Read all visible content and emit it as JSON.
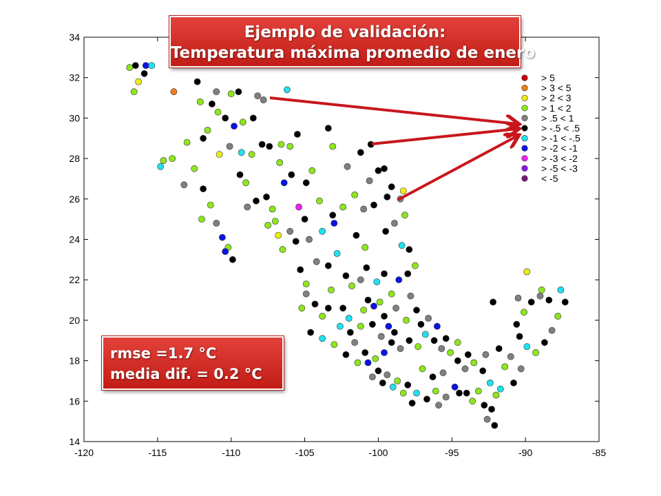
{
  "title": {
    "line1": "Ejemplo de validación:",
    "line2": "Temperatura máxima promedio de enero"
  },
  "stats": {
    "rmse": "rmse =1.7 °C",
    "media": "media dif. =  0.2 °C"
  },
  "colors": {
    "frame": "#000000",
    "arrow": "#c8161d",
    "box": "#d42b25"
  },
  "chart_data": {
    "type": "scatter",
    "xlim": [
      -120,
      -85
    ],
    "ylim": [
      14,
      34
    ],
    "xticks": [
      "-120",
      "-115",
      "-110",
      "-105",
      "-100",
      "-95",
      "-90",
      "-85"
    ],
    "yticks": [
      "14",
      "16",
      "18",
      "20",
      "22",
      "24",
      "26",
      "28",
      "30",
      "32",
      "34"
    ],
    "grid": false,
    "legend_position": "top-right",
    "legend": [
      {
        "label": "> 5",
        "color": "#cc0000"
      },
      {
        "label": "> 3 < 5",
        "color": "#f07d1a"
      },
      {
        "label": "> 2 < 3",
        "color": "#ecec1a"
      },
      {
        "label": "> 1 < 2",
        "color": "#8ee61e"
      },
      {
        "label": "> .5 < 1",
        "color": "#808080"
      },
      {
        "label": "> -.5 < .5",
        "color": "#000000"
      },
      {
        "label": "> -1 < -.5",
        "color": "#22e0f0"
      },
      {
        "label": "> -2 < -1",
        "color": "#0a14e6"
      },
      {
        "label": "> -3 < -2",
        "color": "#f020f0"
      },
      {
        "label": "> -5 < -3",
        "color": "#8a1ae0"
      },
      {
        "label": "< -5",
        "color": "#7a1a7a"
      }
    ],
    "points": [
      [
        -116.9,
        32.5,
        3
      ],
      [
        -116.5,
        32.6,
        5
      ],
      [
        -115.8,
        32.6,
        7
      ],
      [
        -115.4,
        32.6,
        6
      ],
      [
        -116.3,
        31.8,
        2
      ],
      [
        -116.6,
        31.3,
        3
      ],
      [
        -115.9,
        32.2,
        5
      ],
      [
        -113.9,
        31.3,
        1
      ],
      [
        -112.3,
        31.8,
        5
      ],
      [
        -112.1,
        30.8,
        3
      ],
      [
        -111.3,
        30.7,
        5
      ],
      [
        -111.0,
        31.3,
        4
      ],
      [
        -110.0,
        31.2,
        3
      ],
      [
        -109.5,
        31.3,
        5
      ],
      [
        -110.9,
        30.3,
        3
      ],
      [
        -110.4,
        30.0,
        5
      ],
      [
        -109.8,
        29.6,
        7
      ],
      [
        -109.2,
        29.8,
        3
      ],
      [
        -108.5,
        30.0,
        5
      ],
      [
        -107.8,
        30.9,
        4
      ],
      [
        -108.2,
        31.1,
        4
      ],
      [
        -107.9,
        28.7,
        5
      ],
      [
        -108.6,
        28.2,
        3
      ],
      [
        -107.4,
        28.6,
        5
      ],
      [
        -106.2,
        31.4,
        6
      ],
      [
        -106.6,
        28.7,
        3
      ],
      [
        -106.0,
        28.6,
        3
      ],
      [
        -105.5,
        29.2,
        5
      ],
      [
        -105.9,
        27.2,
        5
      ],
      [
        -106.4,
        26.8,
        7
      ],
      [
        -106.7,
        27.8,
        3
      ],
      [
        -107.6,
        26.1,
        5
      ],
      [
        -107.2,
        25.5,
        3
      ],
      [
        -105.4,
        25.6,
        8
      ],
      [
        -104.9,
        26.8,
        5
      ],
      [
        -104.5,
        27.4,
        3
      ],
      [
        -103.4,
        29.5,
        5
      ],
      [
        -103.1,
        28.6,
        3
      ],
      [
        -102.1,
        27.6,
        4
      ],
      [
        -101.2,
        28.3,
        5
      ],
      [
        -100.5,
        28.7,
        5
      ],
      [
        -100.0,
        27.4,
        5
      ],
      [
        -100.6,
        26.9,
        4
      ],
      [
        -99.6,
        27.5,
        5
      ],
      [
        -101.6,
        26.2,
        3
      ],
      [
        -100.3,
        25.7,
        5
      ],
      [
        -99.4,
        26.1,
        5
      ],
      [
        -98.5,
        26.0,
        4
      ],
      [
        -98.2,
        25.2,
        3
      ],
      [
        -101.0,
        25.5,
        4
      ],
      [
        -102.4,
        25.6,
        3
      ],
      [
        -103.1,
        25.2,
        5
      ],
      [
        -103.8,
        24.4,
        6
      ],
      [
        -104.7,
        24.0,
        4
      ],
      [
        -105.6,
        23.9,
        5
      ],
      [
        -106.5,
        23.5,
        3
      ],
      [
        -105.3,
        22.5,
        5
      ],
      [
        -104.9,
        21.8,
        3
      ],
      [
        -104.2,
        22.9,
        4
      ],
      [
        -103.4,
        22.7,
        5
      ],
      [
        -102.8,
        23.3,
        6
      ],
      [
        -102.2,
        22.2,
        5
      ],
      [
        -101.8,
        21.7,
        3
      ],
      [
        -101.2,
        22.0,
        4
      ],
      [
        -100.8,
        22.6,
        5
      ],
      [
        -100.1,
        21.9,
        6
      ],
      [
        -99.6,
        22.3,
        5
      ],
      [
        -99.1,
        21.3,
        3
      ],
      [
        -98.6,
        22.0,
        7
      ],
      [
        -98.0,
        22.3,
        5
      ],
      [
        -97.8,
        21.2,
        4
      ],
      [
        -97.4,
        20.5,
        5
      ],
      [
        -98.1,
        20.0,
        3
      ],
      [
        -98.9,
        19.4,
        5
      ],
      [
        -99.3,
        19.7,
        7
      ],
      [
        -99.8,
        19.2,
        4
      ],
      [
        -100.4,
        19.8,
        5
      ],
      [
        -101.2,
        19.7,
        3
      ],
      [
        -101.9,
        19.4,
        5
      ],
      [
        -102.6,
        19.7,
        6
      ],
      [
        -103.4,
        20.6,
        5
      ],
      [
        -103.8,
        20.2,
        3
      ],
      [
        -104.3,
        20.8,
        5
      ],
      [
        -104.9,
        21.3,
        4
      ],
      [
        -105.2,
        20.6,
        3
      ],
      [
        -104.6,
        19.4,
        5
      ],
      [
        -103.8,
        19.1,
        6
      ],
      [
        -103.0,
        18.8,
        3
      ],
      [
        -102.2,
        18.3,
        5
      ],
      [
        -101.6,
        18.9,
        4
      ],
      [
        -100.9,
        18.4,
        5
      ],
      [
        -100.2,
        18.1,
        3
      ],
      [
        -99.6,
        18.4,
        7
      ],
      [
        -99.1,
        18.9,
        5
      ],
      [
        -98.5,
        18.6,
        4
      ],
      [
        -97.9,
        19.0,
        5
      ],
      [
        -97.3,
        18.7,
        3
      ],
      [
        -96.8,
        19.3,
        6
      ],
      [
        -96.2,
        19.0,
        5
      ],
      [
        -95.7,
        18.6,
        4
      ],
      [
        -95.1,
        18.4,
        3
      ],
      [
        -94.6,
        18.0,
        5
      ],
      [
        -94.1,
        17.6,
        4
      ],
      [
        -93.5,
        17.9,
        3
      ],
      [
        -92.9,
        17.5,
        5
      ],
      [
        -92.4,
        16.9,
        6
      ],
      [
        -92.0,
        16.3,
        3
      ],
      [
        -92.3,
        15.6,
        5
      ],
      [
        -92.6,
        15.1,
        4
      ],
      [
        -92.1,
        14.8,
        5
      ],
      [
        -93.2,
        16.5,
        3
      ],
      [
        -94.0,
        16.4,
        5
      ],
      [
        -94.8,
        16.7,
        7
      ],
      [
        -95.4,
        16.2,
        4
      ],
      [
        -96.1,
        16.5,
        3
      ],
      [
        -96.7,
        16.1,
        5
      ],
      [
        -97.4,
        16.4,
        6
      ],
      [
        -98.0,
        16.8,
        5
      ],
      [
        -98.7,
        17.0,
        3
      ],
      [
        -99.4,
        17.3,
        4
      ],
      [
        -100.0,
        17.5,
        5
      ],
      [
        -100.7,
        17.9,
        7
      ],
      [
        -101.4,
        17.9,
        3
      ],
      [
        -96.3,
        17.2,
        5
      ],
      [
        -95.6,
        17.4,
        4
      ],
      [
        -97.0,
        17.6,
        3
      ],
      [
        -90.6,
        19.8,
        5
      ],
      [
        -90.1,
        20.4,
        3
      ],
      [
        -89.6,
        20.9,
        5
      ],
      [
        -89.0,
        21.2,
        4
      ],
      [
        -88.4,
        21.0,
        5
      ],
      [
        -87.3,
        20.9,
        5
      ],
      [
        -87.8,
        20.2,
        3
      ],
      [
        -88.2,
        19.5,
        4
      ],
      [
        -88.7,
        18.9,
        5
      ],
      [
        -89.3,
        18.4,
        3
      ],
      [
        -89.9,
        18.7,
        6
      ],
      [
        -90.4,
        19.2,
        5
      ],
      [
        -91.0,
        18.2,
        4
      ],
      [
        -91.8,
        18.6,
        5
      ],
      [
        -92.2,
        20.9,
        5
      ],
      [
        -89.9,
        22.4,
        2
      ],
      [
        -87.6,
        21.5,
        6
      ],
      [
        -88.9,
        21.5,
        3
      ],
      [
        -90.5,
        21.1,
        4
      ],
      [
        -113.0,
        28.8,
        3
      ],
      [
        -112.5,
        27.5,
        3
      ],
      [
        -111.9,
        26.5,
        5
      ],
      [
        -111.4,
        25.7,
        3
      ],
      [
        -111.0,
        24.8,
        4
      ],
      [
        -110.6,
        24.1,
        7
      ],
      [
        -110.2,
        23.6,
        3
      ],
      [
        -109.9,
        23.0,
        5
      ],
      [
        -110.4,
        23.4,
        7
      ],
      [
        -112.0,
        25.0,
        3
      ],
      [
        -113.2,
        26.7,
        4
      ],
      [
        -114.0,
        28.0,
        3
      ],
      [
        -114.6,
        27.9,
        3
      ],
      [
        -114.8,
        27.6,
        6
      ],
      [
        -109.0,
        26.8,
        3
      ],
      [
        -108.3,
        25.9,
        5
      ],
      [
        -107.0,
        24.9,
        3
      ],
      [
        -106.0,
        24.4,
        4
      ],
      [
        -103.0,
        24.8,
        7
      ],
      [
        -101.5,
        24.2,
        5
      ],
      [
        -100.9,
        23.6,
        3
      ],
      [
        -99.5,
        24.4,
        5
      ],
      [
        -98.9,
        24.8,
        4
      ],
      [
        -98.4,
        23.7,
        6
      ],
      [
        -97.9,
        23.5,
        5
      ],
      [
        -97.5,
        22.7,
        3
      ],
      [
        -98.3,
        26.4,
        2
      ],
      [
        -99.1,
        26.6,
        5
      ],
      [
        -104.0,
        25.9,
        3
      ],
      [
        -105.0,
        25.0,
        5
      ],
      [
        -106.8,
        24.2,
        2
      ],
      [
        -107.5,
        24.7,
        3
      ],
      [
        -108.9,
        25.6,
        4
      ],
      [
        -109.4,
        27.2,
        5
      ],
      [
        -110.8,
        28.2,
        2
      ],
      [
        -111.6,
        29.4,
        3
      ],
      [
        -111.9,
        29.0,
        5
      ],
      [
        -110.1,
        28.6,
        4
      ],
      [
        -109.3,
        28.3,
        6
      ],
      [
        -102.4,
        20.6,
        5
      ],
      [
        -101.0,
        20.5,
        3
      ],
      [
        -100.3,
        20.7,
        7
      ],
      [
        -99.6,
        20.2,
        5
      ],
      [
        -98.8,
        20.6,
        4
      ],
      [
        -103.2,
        21.5,
        3
      ],
      [
        -102.0,
        20.1,
        6
      ],
      [
        -100.7,
        21.0,
        5
      ],
      [
        -99.9,
        20.9,
        3
      ],
      [
        -97.1,
        19.8,
        5
      ],
      [
        -96.6,
        20.1,
        4
      ],
      [
        -96.0,
        19.7,
        7
      ],
      [
        -95.4,
        19.1,
        5
      ],
      [
        -94.6,
        18.9,
        3
      ],
      [
        -93.9,
        18.3,
        5
      ],
      [
        -92.7,
        18.3,
        4
      ],
      [
        -91.4,
        17.7,
        3
      ],
      [
        -90.8,
        16.9,
        5
      ],
      [
        -91.7,
        16.6,
        6
      ],
      [
        -90.3,
        17.6,
        4
      ],
      [
        -92.8,
        15.8,
        5
      ],
      [
        -93.6,
        16.0,
        3
      ],
      [
        -94.5,
        16.4,
        5
      ],
      [
        -95.9,
        15.8,
        4
      ],
      [
        -97.7,
        15.9,
        5
      ],
      [
        -98.3,
        16.4,
        3
      ],
      [
        -99.0,
        16.7,
        6
      ],
      [
        -99.7,
        16.9,
        5
      ],
      [
        -100.4,
        17.2,
        4
      ]
    ]
  }
}
